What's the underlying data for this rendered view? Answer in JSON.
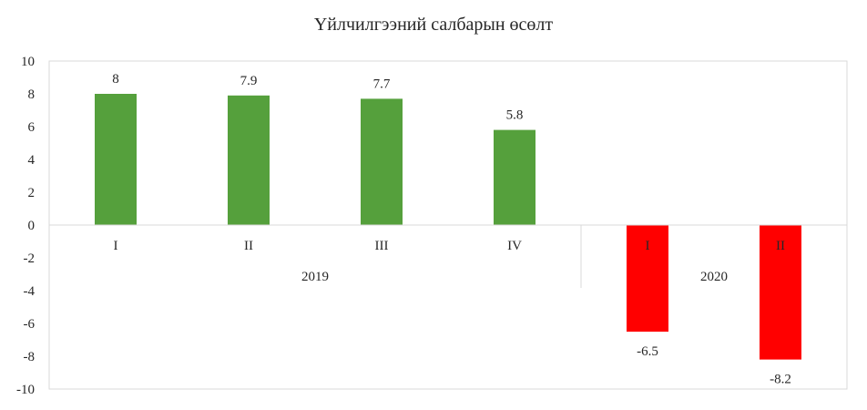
{
  "chart_data": {
    "type": "bar",
    "title": "Үйлчилгээний салбарын өсөлт",
    "xlabel": "",
    "ylabel": "",
    "ylim": [
      -10,
      10
    ],
    "yticks": [
      "10",
      "8",
      "6",
      "4",
      "2",
      "0",
      "-2",
      "-4",
      "-6",
      "-8",
      "-10"
    ],
    "groups": [
      {
        "label": "2019",
        "categories": [
          "I",
          "II",
          "III",
          "IV"
        ]
      },
      {
        "label": "2020",
        "categories": [
          "I",
          "II"
        ]
      }
    ],
    "categories": [
      "I",
      "II",
      "III",
      "IV",
      "I",
      "II"
    ],
    "values": [
      8,
      7.9,
      7.7,
      5.8,
      -6.5,
      -8.2
    ],
    "data_labels": [
      "8",
      "7.9",
      "7.7",
      "5.8",
      "-6.5",
      "-8.2"
    ],
    "grid": false,
    "legend": "none",
    "colors": {
      "positive": "#55A03C",
      "negative": "#FF0000",
      "axis": "#D9D9D9",
      "text": "#262626"
    }
  }
}
